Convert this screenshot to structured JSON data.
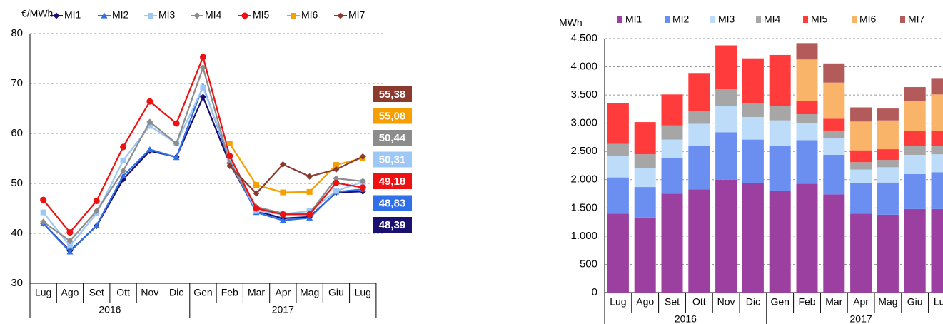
{
  "chart_data": [
    {
      "type": "line",
      "y_label": "€/MWh",
      "categories": [
        "Lug",
        "Ago",
        "Set",
        "Ott",
        "Nov",
        "Dic",
        "Gen",
        "Feb",
        "Mar",
        "Apr",
        "Mag",
        "Giu",
        "Lug"
      ],
      "x_groups": [
        {
          "label": "2016",
          "from": 0,
          "to": 5
        },
        {
          "label": "2017",
          "from": 6,
          "to": 12
        }
      ],
      "ylim": [
        30,
        80
      ],
      "yticks": [
        30,
        40,
        50,
        60,
        70,
        80
      ],
      "grid": true,
      "series": [
        {
          "name": "MI1",
          "color": "#1a1070",
          "marker": "diamond",
          "values": [
            42,
            36.5,
            41.5,
            50.8,
            56.5,
            55.3,
            67.3,
            54,
            44.5,
            43,
            43.3,
            48.2,
            48.39
          ],
          "value_labels": [
            null,
            null,
            null,
            null,
            null,
            null,
            null,
            null,
            null,
            null,
            null,
            null,
            "48,39"
          ]
        },
        {
          "name": "MI2",
          "color": "#2f6fe8",
          "marker": "triangle",
          "values": [
            42,
            36.3,
            41.6,
            51.5,
            56.8,
            55.2,
            69.5,
            54.5,
            44.2,
            42.6,
            43.1,
            48.3,
            48.83
          ],
          "value_labels": [
            null,
            null,
            null,
            null,
            null,
            null,
            null,
            null,
            null,
            null,
            null,
            null,
            "48,83"
          ]
        },
        {
          "name": "MI3",
          "color": "#9dc8f5",
          "marker": "square",
          "values": [
            44.2,
            37.5,
            44,
            54.6,
            61.5,
            58,
            69.2,
            55.2,
            44.5,
            43.8,
            44.5,
            48.5,
            50.31
          ],
          "value_labels": [
            null,
            null,
            null,
            null,
            null,
            null,
            null,
            null,
            null,
            null,
            null,
            null,
            "50,31"
          ]
        },
        {
          "name": "MI4",
          "color": "#8c8c8c",
          "marker": "diamond",
          "values": [
            42.3,
            38.5,
            44.5,
            52.5,
            62.3,
            58,
            73.2,
            54,
            45.3,
            44,
            44,
            51,
            50.44
          ],
          "value_labels": [
            null,
            null,
            null,
            null,
            null,
            null,
            null,
            null,
            null,
            null,
            null,
            null,
            "50,44"
          ]
        },
        {
          "name": "MI5",
          "color": "#ee1111",
          "marker": "circle",
          "values": [
            46.7,
            40.2,
            46.5,
            57.3,
            66.4,
            62,
            75.3,
            55.5,
            45,
            43.8,
            43.8,
            50.1,
            49.18
          ],
          "value_labels": [
            null,
            null,
            null,
            null,
            null,
            null,
            null,
            null,
            null,
            null,
            null,
            null,
            "49,18"
          ]
        },
        {
          "name": "MI6",
          "color": "#f5a000",
          "marker": "square",
          "values": [
            null,
            null,
            null,
            null,
            null,
            null,
            null,
            58,
            49.7,
            48.2,
            48.3,
            53.7,
            55.08
          ],
          "value_labels": [
            null,
            null,
            null,
            null,
            null,
            null,
            null,
            null,
            null,
            null,
            null,
            null,
            "55,08"
          ]
        },
        {
          "name": "MI7",
          "color": "#8b3a2e",
          "marker": "diamond",
          "values": [
            null,
            null,
            null,
            null,
            null,
            null,
            null,
            53.5,
            48,
            53.8,
            51.4,
            52.8,
            55.38
          ],
          "value_labels": [
            null,
            null,
            null,
            null,
            null,
            null,
            null,
            null,
            null,
            null,
            null,
            null,
            "55,38"
          ]
        }
      ]
    },
    {
      "type": "stacked_bar",
      "y_label": "MWh",
      "categories": [
        "Lug",
        "Ago",
        "Set",
        "Ott",
        "Nov",
        "Dic",
        "Gen",
        "Feb",
        "Mar",
        "Apr",
        "Mag",
        "Giu",
        "Lug"
      ],
      "x_groups": [
        {
          "label": "2016",
          "from": 0,
          "to": 5
        },
        {
          "label": "2017",
          "from": 6,
          "to": 12
        }
      ],
      "ylim": [
        0,
        4500
      ],
      "yticks": [
        0,
        500,
        {
          "value": 1000,
          "label": "1.000"
        },
        {
          "value": 1500,
          "label": "1.500"
        },
        {
          "value": 2000,
          "label": "2.000"
        },
        {
          "value": 2500,
          "label": "2.500"
        },
        {
          "value": 3000,
          "label": "3.000"
        },
        {
          "value": 3500,
          "label": "3.500"
        },
        {
          "value": 4000,
          "label": "4.000"
        },
        {
          "value": 4500,
          "label": "4.500"
        }
      ],
      "grid": true,
      "series": [
        {
          "name": "MI1",
          "color": "#9b3fa0",
          "values": [
            1400,
            1330,
            1750,
            1830,
            2000,
            1940,
            1800,
            1930,
            1740,
            1400,
            1380,
            1480,
            1480
          ]
        },
        {
          "name": "MI2",
          "color": "#6a8ff0",
          "values": [
            640,
            540,
            630,
            770,
            840,
            770,
            800,
            770,
            700,
            540,
            570,
            620,
            650
          ]
        },
        {
          "name": "MI3",
          "color": "#bcdcfa",
          "values": [
            380,
            340,
            330,
            390,
            470,
            400,
            450,
            300,
            290,
            240,
            270,
            340,
            320
          ]
        },
        {
          "name": "MI4",
          "color": "#a6a6a6",
          "values": [
            215,
            240,
            250,
            230,
            290,
            240,
            250,
            160,
            140,
            130,
            130,
            160,
            150
          ]
        },
        {
          "name": "MI5",
          "color": "#ff3b3b",
          "values": [
            720,
            570,
            550,
            670,
            780,
            800,
            910,
            240,
            210,
            210,
            190,
            260,
            270
          ]
        },
        {
          "name": "MI6",
          "color": "#f9b46a",
          "values": [
            0,
            0,
            0,
            0,
            0,
            0,
            0,
            730,
            640,
            510,
            510,
            540,
            640
          ]
        },
        {
          "name": "MI7",
          "color": "#b35a5a",
          "values": [
            0,
            0,
            0,
            0,
            0,
            0,
            0,
            290,
            340,
            250,
            210,
            240,
            290
          ]
        }
      ]
    }
  ]
}
